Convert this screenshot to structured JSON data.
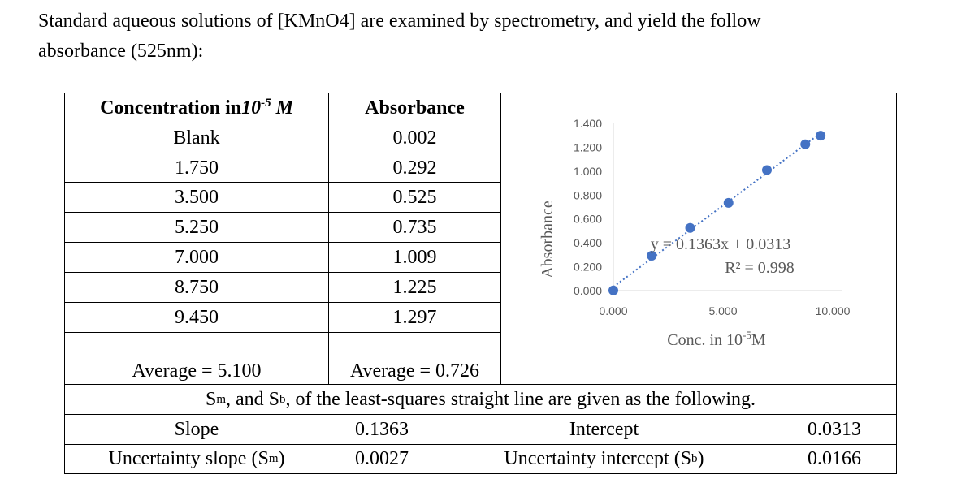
{
  "intro": {
    "line1": "Standard aqueous solutions of [KMnO4] are examined by spectrometry, and yield the follow",
    "line2": "absorbance (525nm):"
  },
  "table": {
    "header_conc_prefix": "Concentration in ",
    "header_conc_unit_base": "10",
    "header_conc_unit_exp": "-5",
    "header_conc_unit_suffix": " M",
    "header_abs": "Absorbance",
    "rows": [
      {
        "conc": "Blank",
        "abs": "0.002"
      },
      {
        "conc": "1.750",
        "abs": "0.292"
      },
      {
        "conc": "3.500",
        "abs": "0.525"
      },
      {
        "conc": "5.250",
        "abs": "0.735"
      },
      {
        "conc": "7.000",
        "abs": "1.009"
      },
      {
        "conc": "8.750",
        "abs": "1.225"
      },
      {
        "conc": "9.450",
        "abs": "1.297"
      }
    ],
    "avg_conc": "Average = 5.100",
    "avg_abs": "Average = 0.726",
    "note_prefix_S": "S",
    "note_m": "m",
    "note_mid": ", and S",
    "note_b": "b",
    "note_suffix": ", of the least-squares straight line are given as the following.",
    "slope_label": "Slope",
    "slope_value": "0.1363",
    "intercept_label": "Intercept",
    "intercept_value": "0.0313",
    "unc_slope_label_pre": "Uncertainty slope (S",
    "unc_slope_label_sub": "m",
    "unc_slope_label_post": ")",
    "unc_slope_value": "0.0027",
    "unc_int_label_pre": "Uncertainty intercept (S",
    "unc_int_label_sub": "b",
    "unc_int_label_post": ")",
    "unc_int_value": "0.0166"
  },
  "chart_data": {
    "type": "scatter",
    "x": [
      0,
      1.75,
      3.5,
      5.25,
      7.0,
      8.75,
      9.45
    ],
    "y": [
      0.002,
      0.292,
      0.525,
      0.735,
      1.009,
      1.225,
      1.297
    ],
    "xlim": [
      0,
      10
    ],
    "ylim": [
      0,
      1.4
    ],
    "xticks": [
      "0.000",
      "5.000",
      "10.000"
    ],
    "yticks": [
      "0.000",
      "0.200",
      "0.400",
      "0.600",
      "0.800",
      "1.000",
      "1.200",
      "1.400"
    ],
    "ylabel": "Absorbance",
    "xlabel_prefix": "Conc. in 10",
    "xlabel_exp": "-5",
    "xlabel_suffix": "M",
    "trendline": {
      "slope": 0.1363,
      "intercept": 0.0313,
      "style": "dotted"
    },
    "equation": "y = 0.1363x + 0.0313",
    "r_squared": "R² = 0.998",
    "point_color": "#4472C4",
    "grid": false
  }
}
